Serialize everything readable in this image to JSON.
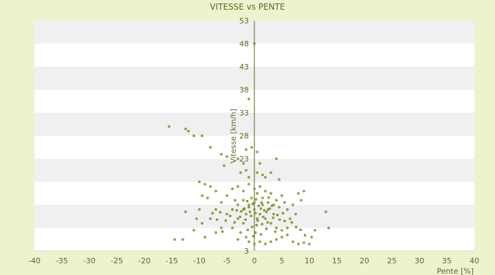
{
  "chart_data": {
    "type": "scatter",
    "title": "VITESSE vs PENTE",
    "xlabel": "Pente [%]",
    "ylabel": "Vitesse [km/h]",
    "xlim": [
      -40,
      40
    ],
    "ylim": [
      3,
      53
    ],
    "x_ticks": [
      -40,
      -35,
      -30,
      -25,
      -20,
      -15,
      -10,
      -5,
      0,
      5,
      10,
      15,
      20,
      25,
      30,
      35,
      40
    ],
    "y_ticks": [
      3,
      8,
      13,
      18,
      23,
      28,
      33,
      38,
      43,
      48,
      53
    ],
    "y_tick_labels": [
      "3",
      "",
      "",
      "",
      "23",
      "28",
      "33",
      "38",
      "43",
      "48",
      "53"
    ],
    "grid": "horizontal bands",
    "colors": {
      "background": "#eef2cf",
      "band_light": "#ffffff",
      "band_shaded": "#f0f0f0",
      "point_fill": "#b7c436",
      "point_edge": "#4d5a08",
      "axis": "#55620f",
      "text": "#5a6a1e"
    },
    "series": [
      {
        "points": [
          [
            -15.5,
            30
          ],
          [
            -12.5,
            29.5
          ],
          [
            -12,
            29
          ],
          [
            -11,
            28
          ],
          [
            -9.5,
            28
          ],
          [
            -8,
            25.5
          ],
          [
            -6,
            24
          ],
          [
            -5,
            23.5
          ],
          [
            -5.5,
            21.5
          ],
          [
            -3,
            23
          ],
          [
            -2,
            22
          ],
          [
            -1.5,
            25
          ],
          [
            -0.5,
            25.5
          ],
          [
            0.5,
            24.5
          ],
          [
            1,
            22
          ],
          [
            -1,
            36
          ],
          [
            0,
            48
          ],
          [
            -2.5,
            20
          ],
          [
            -1,
            19
          ],
          [
            -1.5,
            20.5
          ],
          [
            0.5,
            20
          ],
          [
            1.5,
            19.5
          ],
          [
            2,
            19
          ],
          [
            4,
            23
          ],
          [
            3,
            20
          ],
          [
            4.5,
            18.5
          ],
          [
            -10,
            18
          ],
          [
            -9,
            17.5
          ],
          [
            -8,
            17
          ],
          [
            -7,
            16
          ],
          [
            -9.5,
            15
          ],
          [
            -8.5,
            14.5
          ],
          [
            -10,
            12
          ],
          [
            -12.5,
            11.5
          ],
          [
            -10.5,
            10
          ],
          [
            -9.5,
            9
          ],
          [
            -11,
            7.5
          ],
          [
            -13,
            5.5
          ],
          [
            -14.5,
            5.5
          ],
          [
            -9,
            6
          ],
          [
            -7,
            7
          ],
          [
            -6,
            8
          ],
          [
            -8,
            10
          ],
          [
            -7,
            12
          ],
          [
            -6,
            13.5
          ],
          [
            -5,
            15
          ],
          [
            -4,
            16.5
          ],
          [
            -3,
            17
          ],
          [
            -3.5,
            14
          ],
          [
            -4,
            12
          ],
          [
            -5,
            11
          ],
          [
            -3,
            10
          ],
          [
            -2,
            9
          ],
          [
            -4,
            8
          ],
          [
            -2.5,
            7
          ],
          [
            -1.5,
            6
          ],
          [
            -3,
            5.5
          ],
          [
            -1,
            5
          ],
          [
            0,
            4.5
          ],
          [
            1,
            5
          ],
          [
            2,
            4.5
          ],
          [
            3,
            5
          ],
          [
            4,
            5.5
          ],
          [
            5,
            6
          ],
          [
            6,
            6.5
          ],
          [
            7,
            5
          ],
          [
            8,
            4.5
          ],
          [
            9,
            4.8
          ],
          [
            10,
            4.5
          ],
          [
            11,
            7.5
          ],
          [
            13.5,
            8
          ],
          [
            13,
            11.5
          ],
          [
            9,
            16
          ],
          [
            8,
            15.5
          ],
          [
            8.5,
            14
          ],
          [
            7,
            13
          ],
          [
            6,
            12
          ],
          [
            7.5,
            11
          ],
          [
            6.5,
            10
          ],
          [
            5.5,
            9.5
          ],
          [
            6,
            8
          ],
          [
            5,
            7.5
          ],
          [
            4,
            8
          ],
          [
            3,
            9
          ],
          [
            2,
            10
          ],
          [
            1,
            11
          ],
          [
            0,
            12
          ],
          [
            -1,
            13
          ],
          [
            -2,
            12
          ],
          [
            -1.5,
            11
          ],
          [
            0.5,
            10
          ],
          [
            1.5,
            13
          ],
          [
            2.5,
            12
          ],
          [
            3.5,
            11
          ],
          [
            4.5,
            12.5
          ],
          [
            5.5,
            13.5
          ],
          [
            5,
            15
          ],
          [
            4,
            14
          ],
          [
            3,
            15.5
          ],
          [
            2,
            16
          ],
          [
            1,
            17
          ],
          [
            0,
            16.5
          ],
          [
            -1,
            17.5
          ],
          [
            -2,
            16
          ],
          [
            -0.5,
            14.5
          ],
          [
            0.5,
            15.5
          ],
          [
            1.5,
            14.5
          ],
          [
            2.5,
            13.5
          ],
          [
            3.5,
            13
          ],
          [
            0,
            13.5
          ],
          [
            -1,
            12.5
          ],
          [
            -2,
            14
          ],
          [
            -3,
            13
          ],
          [
            0.8,
            12.8
          ],
          [
            1.8,
            11.8
          ],
          [
            2.8,
            12.2
          ],
          [
            -0.8,
            11.5
          ],
          [
            -1.8,
            12.2
          ],
          [
            0.2,
            11.2
          ],
          [
            1.2,
            12.2
          ],
          [
            2.2,
            11.5
          ],
          [
            -0.3,
            13.2
          ],
          [
            0.3,
            14.2
          ],
          [
            1.3,
            13.5
          ],
          [
            -1.3,
            13.8
          ],
          [
            2.6,
            14.6
          ],
          [
            3.2,
            12.8
          ],
          [
            -2.4,
            11.6
          ],
          [
            -0.6,
            10.6
          ],
          [
            0.6,
            9.6
          ],
          [
            1.6,
            10.4
          ],
          [
            -1.6,
            9.8
          ],
          [
            2.4,
            9.2
          ],
          [
            3.4,
            10.2
          ],
          [
            -2.6,
            10.4
          ],
          [
            0.4,
            8.6
          ],
          [
            -0.4,
            8.2
          ],
          [
            1.4,
            8.8
          ],
          [
            2.2,
            7.8
          ],
          [
            -1.2,
            7.6
          ],
          [
            0.2,
            7
          ],
          [
            1.2,
            6.6
          ],
          [
            -0.2,
            6.2
          ],
          [
            3.8,
            7.2
          ],
          [
            4.6,
            9.8
          ],
          [
            -3.6,
            9.2
          ],
          [
            -4.4,
            10.6
          ],
          [
            -3.2,
            11.8
          ],
          [
            4.2,
            10.8
          ],
          [
            5.2,
            11.2
          ],
          [
            -5.2,
            9.6
          ],
          [
            -6.2,
            11.4
          ],
          [
            6.8,
            9.2
          ],
          [
            7.6,
            8.2
          ],
          [
            8.4,
            7.6
          ],
          [
            9.2,
            6.4
          ],
          [
            10.4,
            6
          ],
          [
            -5.8,
            7.2
          ],
          [
            -6.8,
            9.8
          ],
          [
            -7.6,
            11.2
          ]
        ]
      }
    ]
  }
}
